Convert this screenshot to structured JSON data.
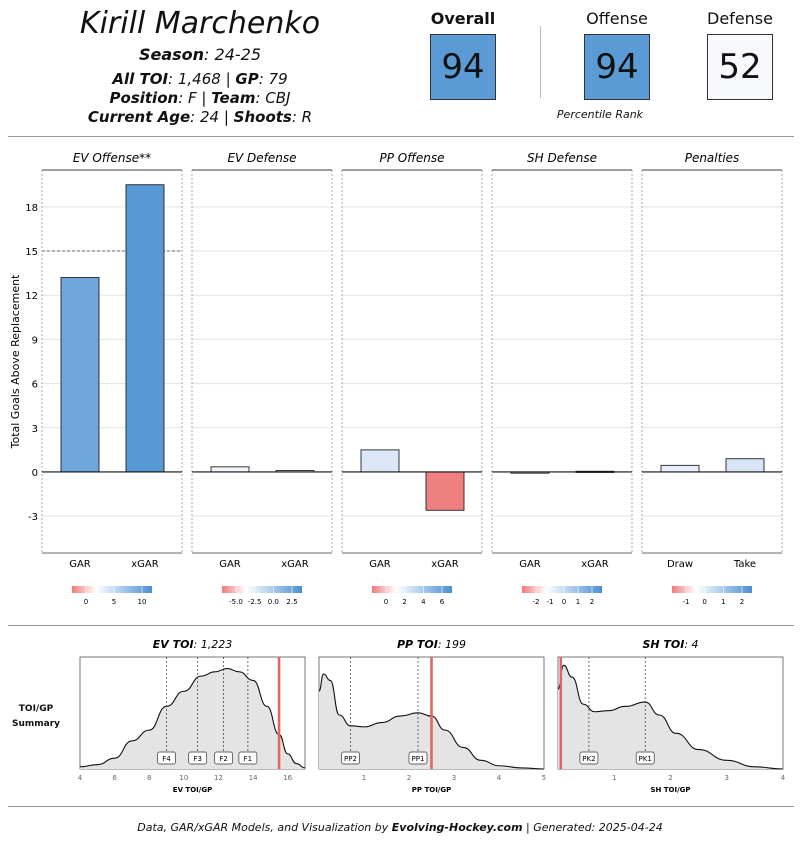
{
  "header": {
    "player_name": "Kirill Marchenko",
    "season_label": "Season",
    "season_value": ": 24-25",
    "toi_label": "All TOI",
    "toi_value": ": 1,468",
    "sep1": " | ",
    "gp_label": "GP",
    "gp_value": ": 79",
    "position_label": "Position",
    "position_value": ": F",
    "sep2": " | ",
    "team_label": "Team",
    "team_value": ": CBJ",
    "age_label": "Current Age",
    "age_value": ": 24",
    "sep3": " | ",
    "shoots_label": "Shoots",
    "shoots_value": ": R"
  },
  "ratings": {
    "overall_label": "Overall",
    "overall_value": "94",
    "offense_label": "Offense",
    "offense_value": "94",
    "defense_label": "Defense",
    "defense_value": "52",
    "percentile_label": "Percentile Rank",
    "colors": {
      "high": "#5b9bd5",
      "neutral": "#f7f9fc"
    }
  },
  "chart_data": [
    {
      "type": "bar",
      "ylabel": "Total Goals Above Replacement",
      "ylim": [
        -5.5,
        20.5
      ],
      "yticks": [
        -3,
        0,
        3,
        6,
        9,
        12,
        15,
        18
      ],
      "reference_line": 15,
      "panels": [
        {
          "title": "EV Offense**",
          "categories": [
            "GAR",
            "xGAR"
          ],
          "values": [
            13.2,
            19.5
          ],
          "colors": [
            "#6fa6dc",
            "#5699d5"
          ],
          "legend_ticks": [
            "0",
            "5",
            "10"
          ]
        },
        {
          "title": "EV Defense",
          "categories": [
            "GAR",
            "xGAR"
          ],
          "values": [
            0.35,
            0.1
          ],
          "colors": [
            "#f2f6fc",
            "#f2f6fc"
          ],
          "legend_ticks": [
            "-5.0",
            "-2.5",
            "0.0",
            "2.5"
          ]
        },
        {
          "title": "PP Offense",
          "categories": [
            "GAR",
            "xGAR"
          ],
          "values": [
            1.5,
            -2.6
          ],
          "colors": [
            "#dbe7f7",
            "#ef8080"
          ],
          "legend_ticks": [
            "0",
            "2",
            "4",
            "6"
          ]
        },
        {
          "title": "SH Defense",
          "categories": [
            "GAR",
            "xGAR"
          ],
          "values": [
            0.0,
            0.05
          ],
          "colors": [
            "#f4f4f4",
            "#f4f4f4"
          ],
          "legend_ticks": [
            "-2",
            "-1",
            "0",
            "1",
            "2"
          ]
        },
        {
          "title": "Penalties",
          "categories": [
            "Draw",
            "Take"
          ],
          "values": [
            0.45,
            0.9
          ],
          "colors": [
            "#e7eef9",
            "#d7e4f6"
          ],
          "legend_ticks": [
            "-1",
            "0",
            "1",
            "2"
          ]
        }
      ]
    },
    {
      "type": "area",
      "side_label_1": "TOI/GP",
      "side_label_2": "Summary",
      "panels": [
        {
          "title_label": "EV TOI",
          "title_value": ": 1,223",
          "xlabel": "EV TOI/GP",
          "xlim": [
            4,
            17
          ],
          "xticks": [
            4,
            6,
            8,
            10,
            12,
            14,
            16
          ],
          "player_value": 15.5,
          "markers": [
            {
              "label": "F4",
              "x": 9.0
            },
            {
              "label": "F3",
              "x": 10.8
            },
            {
              "label": "F2",
              "x": 12.3
            },
            {
              "label": "F1",
              "x": 13.7
            }
          ],
          "density": [
            [
              4,
              0.02
            ],
            [
              5,
              0.04
            ],
            [
              6,
              0.1
            ],
            [
              7,
              0.26
            ],
            [
              8,
              0.36
            ],
            [
              9,
              0.58
            ],
            [
              10,
              0.72
            ],
            [
              11,
              0.86
            ],
            [
              11.8,
              0.9
            ],
            [
              12.5,
              0.93
            ],
            [
              13.2,
              0.9
            ],
            [
              14,
              0.82
            ],
            [
              14.8,
              0.58
            ],
            [
              15.5,
              0.32
            ],
            [
              16,
              0.14
            ],
            [
              16.5,
              0.05
            ],
            [
              17,
              0.01
            ]
          ]
        },
        {
          "title_label": "PP TOI",
          "title_value": ": 199",
          "xlabel": "PP TOI/GP",
          "xlim": [
            0,
            5
          ],
          "xticks": [
            1,
            2,
            3,
            4,
            5
          ],
          "player_value": 2.5,
          "markers": [
            {
              "label": "PP2",
              "x": 0.7
            },
            {
              "label": "PP1",
              "x": 2.2
            }
          ],
          "density": [
            [
              0,
              0.72
            ],
            [
              0.1,
              0.88
            ],
            [
              0.25,
              0.82
            ],
            [
              0.45,
              0.5
            ],
            [
              0.7,
              0.4
            ],
            [
              1.0,
              0.39
            ],
            [
              1.4,
              0.43
            ],
            [
              1.8,
              0.49
            ],
            [
              2.2,
              0.52
            ],
            [
              2.5,
              0.49
            ],
            [
              2.8,
              0.36
            ],
            [
              3.2,
              0.2
            ],
            [
              3.6,
              0.08
            ],
            [
              4.0,
              0.03
            ],
            [
              4.5,
              0.01
            ],
            [
              5,
              0.0
            ]
          ]
        },
        {
          "title_label": "SH TOI",
          "title_value": ": 4",
          "xlabel": "SH TOI/GP",
          "xlim": [
            0,
            4
          ],
          "xticks": [
            1,
            2,
            3,
            4
          ],
          "player_value": 0.05,
          "markers": [
            {
              "label": "PK2",
              "x": 0.55
            },
            {
              "label": "PK1",
              "x": 1.55
            }
          ],
          "density": [
            [
              0,
              0.74
            ],
            [
              0.1,
              0.96
            ],
            [
              0.25,
              0.85
            ],
            [
              0.45,
              0.6
            ],
            [
              0.65,
              0.53
            ],
            [
              0.9,
              0.54
            ],
            [
              1.2,
              0.58
            ],
            [
              1.55,
              0.62
            ],
            [
              1.8,
              0.5
            ],
            [
              2.1,
              0.33
            ],
            [
              2.5,
              0.18
            ],
            [
              3.0,
              0.08
            ],
            [
              3.5,
              0.02
            ],
            [
              4.0,
              0.0
            ]
          ]
        }
      ]
    }
  ],
  "footer": {
    "prefix": "Data, GAR/xGAR Models, and Visualization by ",
    "brand": "Evolving-Hockey.com",
    "suffix": " | Generated: 2025-04-24"
  }
}
